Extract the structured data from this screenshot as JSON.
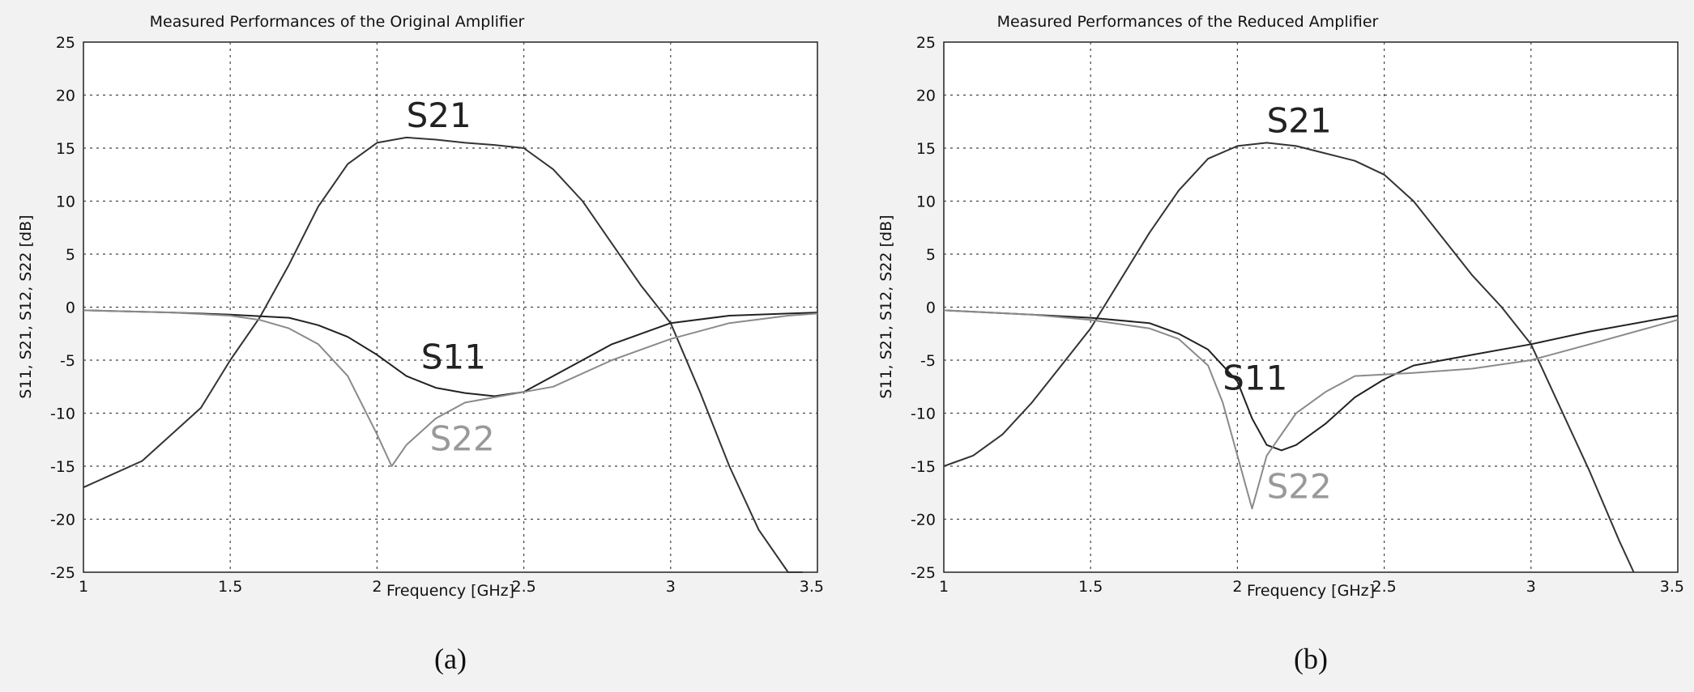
{
  "chart_data": [
    {
      "type": "line",
      "title": "Measured Performances of the Original Amplifier",
      "xlabel": "Frequency [GHz]",
      "ylabel": "S11, S21, S12, S22 [dB]",
      "caption": "(a)",
      "xlim": [
        1,
        3.5
      ],
      "ylim": [
        -25,
        25
      ],
      "xticks": [
        "1",
        "1.5",
        "2",
        "2.5",
        "3",
        "3.5"
      ],
      "yticks": [
        "25",
        "20",
        "15",
        "10",
        "5",
        "0",
        "-5",
        "-10",
        "-15",
        "-20",
        "-25"
      ],
      "grid": true,
      "series": [
        {
          "name": "S21",
          "color": "#333333",
          "label_at": [
            2.1,
            17
          ],
          "x": [
            1.0,
            1.2,
            1.4,
            1.5,
            1.6,
            1.7,
            1.8,
            1.9,
            2.0,
            2.1,
            2.2,
            2.3,
            2.4,
            2.5,
            2.6,
            2.7,
            2.8,
            2.9,
            3.0,
            3.1,
            3.2,
            3.3,
            3.4,
            3.45
          ],
          "y": [
            -17,
            -14.5,
            -9.5,
            -5,
            -1,
            4,
            9.5,
            13.5,
            15.5,
            16,
            15.8,
            15.5,
            15.3,
            15,
            13,
            10,
            6,
            2,
            -1.5,
            -8,
            -15,
            -21,
            -25,
            -25
          ]
        },
        {
          "name": "S11",
          "color": "#222222",
          "label_at": [
            2.15,
            -5.8
          ],
          "x": [
            1.0,
            1.3,
            1.5,
            1.7,
            1.8,
            1.9,
            2.0,
            2.1,
            2.2,
            2.3,
            2.4,
            2.5,
            2.6,
            2.8,
            3.0,
            3.2,
            3.4,
            3.5
          ],
          "y": [
            -0.3,
            -0.5,
            -0.7,
            -1,
            -1.7,
            -2.8,
            -4.5,
            -6.5,
            -7.6,
            -8.1,
            -8.4,
            -8,
            -6.5,
            -3.5,
            -1.5,
            -0.8,
            -0.6,
            -0.5
          ]
        },
        {
          "name": "S22",
          "color": "#8a8a8a",
          "label_at": [
            2.18,
            -13.5
          ],
          "x": [
            1.0,
            1.3,
            1.5,
            1.6,
            1.7,
            1.8,
            1.9,
            2.0,
            2.05,
            2.1,
            2.2,
            2.3,
            2.4,
            2.5,
            2.6,
            2.8,
            3.0,
            3.2,
            3.4,
            3.5
          ],
          "y": [
            -0.3,
            -0.5,
            -0.8,
            -1.2,
            -2,
            -3.5,
            -6.5,
            -12,
            -15,
            -13,
            -10.5,
            -9,
            -8.5,
            -8,
            -7.5,
            -5,
            -3,
            -1.5,
            -0.8,
            -0.6
          ]
        }
      ]
    },
    {
      "type": "line",
      "title": "Measured Performances of the Reduced Amplifier",
      "xlabel": "Frequency [GHz]",
      "ylabel": "S11, S21, S12, S22 [dB]",
      "caption": "(b)",
      "xlim": [
        1,
        3.5
      ],
      "ylim": [
        -25,
        25
      ],
      "xticks": [
        "1",
        "1.5",
        "2",
        "2.5",
        "3",
        "3.5"
      ],
      "yticks": [
        "25",
        "20",
        "15",
        "10",
        "5",
        "0",
        "-5",
        "-10",
        "-15",
        "-20",
        "-25"
      ],
      "grid": true,
      "series": [
        {
          "name": "S21",
          "color": "#333333",
          "label_at": [
            2.1,
            16.5
          ],
          "x": [
            1.0,
            1.1,
            1.2,
            1.3,
            1.4,
            1.5,
            1.6,
            1.7,
            1.8,
            1.9,
            2.0,
            2.1,
            2.2,
            2.3,
            2.4,
            2.5,
            2.6,
            2.7,
            2.8,
            2.9,
            3.0,
            3.1,
            3.2,
            3.3,
            3.35
          ],
          "y": [
            -15,
            -14,
            -12,
            -9,
            -5.5,
            -2,
            2.5,
            7,
            11,
            14,
            15.2,
            15.5,
            15.2,
            14.5,
            13.8,
            12.5,
            10,
            6.5,
            3,
            0,
            -3.5,
            -9.5,
            -15.5,
            -22,
            -25
          ]
        },
        {
          "name": "S11",
          "color": "#222222",
          "label_at": [
            1.95,
            -7.8
          ],
          "x": [
            1.0,
            1.3,
            1.5,
            1.7,
            1.8,
            1.9,
            2.0,
            2.05,
            2.1,
            2.15,
            2.2,
            2.3,
            2.4,
            2.5,
            2.6,
            2.8,
            3.0,
            3.2,
            3.5
          ],
          "y": [
            -0.3,
            -0.7,
            -1,
            -1.5,
            -2.5,
            -4,
            -7,
            -10.5,
            -13,
            -13.5,
            -13,
            -11,
            -8.5,
            -6.8,
            -5.5,
            -4.5,
            -3.5,
            -2.3,
            -0.8
          ]
        },
        {
          "name": "S22",
          "color": "#8a8a8a",
          "label_at": [
            2.1,
            -18
          ],
          "x": [
            1.0,
            1.3,
            1.5,
            1.7,
            1.8,
            1.9,
            1.95,
            2.0,
            2.05,
            2.1,
            2.2,
            2.3,
            2.4,
            2.6,
            2.8,
            3.0,
            3.2,
            3.5
          ],
          "y": [
            -0.3,
            -0.7,
            -1.2,
            -2,
            -3,
            -5.5,
            -9,
            -14,
            -19,
            -14,
            -10,
            -8,
            -6.5,
            -6.2,
            -5.8,
            -5,
            -3.5,
            -1.2
          ]
        }
      ]
    }
  ]
}
